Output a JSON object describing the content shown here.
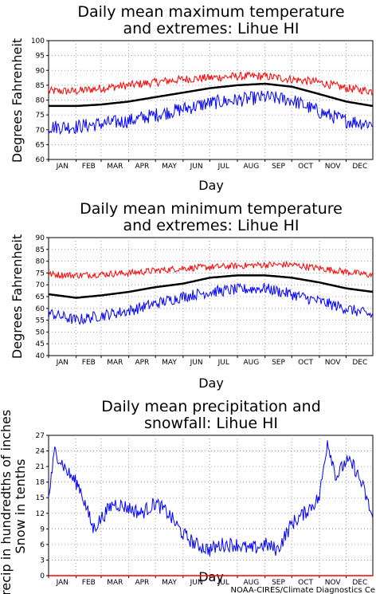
{
  "months": [
    "JAN",
    "FEB",
    "MAR",
    "APR",
    "MAY",
    "JUN",
    "JUL",
    "AUG",
    "SEP",
    "OCT",
    "NOV",
    "DEC"
  ],
  "credit": "NOAA-CIRES/Climate Diagnostics Ce",
  "colors": {
    "max": "#ff0000",
    "mean": "#000000",
    "min": "#0000ff",
    "precip": "#0000ff",
    "snow": "#ff0000",
    "grid": "#888888"
  },
  "chart_data": [
    {
      "type": "line",
      "title_line1": "Daily mean maximum temperature",
      "title_line2": "and extremes: Lihue HI",
      "xlabel": "Day",
      "ylabel": "Degrees Fahrenheit",
      "ylim": [
        60,
        100
      ],
      "yticks": [
        "60",
        "65",
        "70",
        "75",
        "80",
        "85",
        "90",
        "95",
        "100"
      ],
      "grid": true,
      "x": [
        "Jan 1",
        "Feb 1",
        "Mar 1",
        "Apr 1",
        "May 1",
        "Jun 1",
        "Jul 1",
        "Aug 1",
        "Sep 1",
        "Oct 1",
        "Nov 1",
        "Dec 1",
        "Dec 31"
      ],
      "series": [
        {
          "values": [
            83,
            83,
            84,
            85,
            86,
            87,
            87.5,
            88,
            88,
            87,
            86,
            84,
            83
          ]
        },
        {
          "values": [
            78,
            78,
            78.5,
            79.5,
            81,
            82.5,
            84,
            85,
            85.5,
            84.5,
            82,
            79.5,
            78
          ]
        },
        {
          "values": [
            71,
            71,
            72,
            73,
            75,
            77,
            79,
            80,
            81,
            80,
            76,
            73,
            72
          ]
        }
      ]
    },
    {
      "type": "line",
      "title_line1": "Daily mean minimum temperature",
      "title_line2": "and extremes: Lihue HI",
      "xlabel": "Day",
      "ylabel": "Degrees Fahrenheit",
      "ylim": [
        40,
        90
      ],
      "yticks": [
        "40",
        "45",
        "50",
        "55",
        "60",
        "65",
        "70",
        "75",
        "80",
        "85",
        "90"
      ],
      "grid": true,
      "x": [
        "Jan 1",
        "Feb 1",
        "Mar 1",
        "Apr 1",
        "May 1",
        "Jun 1",
        "Jul 1",
        "Aug 1",
        "Sep 1",
        "Oct 1",
        "Nov 1",
        "Dec 1",
        "Dec 31"
      ],
      "series": [
        {
          "values": [
            74.5,
            74,
            74.5,
            75,
            76,
            77,
            77.5,
            78,
            78.5,
            78.5,
            77,
            75.5,
            74
          ]
        },
        {
          "values": [
            66,
            64.5,
            65.5,
            67,
            69,
            70.5,
            73,
            74,
            74,
            73,
            71,
            68.5,
            67
          ]
        },
        {
          "values": [
            58,
            55,
            57,
            59,
            62,
            65,
            67,
            68,
            68.5,
            66,
            63,
            60,
            57
          ]
        }
      ]
    },
    {
      "type": "line",
      "title_line1": "Daily mean precipitation and",
      "title_line2": "snowfall: Lihue HI",
      "xlabel": "Day",
      "ylabel_line1": "Precip in hundredths of inches",
      "ylabel_line2": "Snow in tenths",
      "ylim": [
        0,
        27
      ],
      "yticks": [
        "0",
        "3",
        "6",
        "9",
        "12",
        "15",
        "18",
        "21",
        "24",
        "27"
      ],
      "grid": true,
      "x": [
        "Jan 1",
        "Jan 8",
        "Jan 22",
        "Feb 5",
        "Feb 20",
        "Mar 1",
        "Mar 15",
        "Apr 1",
        "Apr 15",
        "May 1",
        "May 15",
        "Jun 1",
        "Jun 15",
        "Jul 1",
        "Jul 15",
        "Aug 1",
        "Aug 15",
        "Sep 1",
        "Sep 15",
        "Oct 1",
        "Oct 15",
        "Nov 1",
        "Nov 10",
        "Nov 20",
        "Dec 1",
        "Dec 10",
        "Dec 20",
        "Dec 31"
      ],
      "series": [
        {
          "values": [
            15,
            24,
            20,
            17,
            9,
            11,
            14,
            13,
            12,
            14,
            12,
            8,
            6,
            5,
            6,
            6,
            5,
            6,
            5,
            10,
            12,
            15,
            26,
            19,
            22,
            21,
            17,
            11
          ]
        },
        {
          "values": [
            0,
            0,
            0,
            0,
            0,
            0,
            0,
            0,
            0,
            0,
            0,
            0,
            0,
            0,
            0,
            0,
            0,
            0,
            0,
            0,
            0,
            0,
            0,
            0,
            0,
            0,
            0,
            0
          ]
        }
      ]
    }
  ]
}
